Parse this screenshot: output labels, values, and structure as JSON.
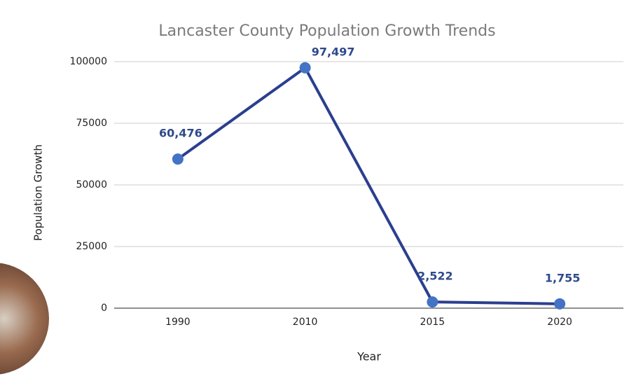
{
  "chart_data": {
    "type": "line",
    "title": "Lancaster County Population Growth Trends",
    "x_label": "Year",
    "y_label": "Population Growth",
    "categories": [
      "1990",
      "2010",
      "2015",
      "2020"
    ],
    "series": [
      {
        "name": "Population Growth",
        "color": "#2b3f8f",
        "marker_color": "#4472c4",
        "values": [
          60476,
          97497,
          2522,
          1755
        ],
        "value_labels": [
          "60,476",
          "97,497",
          "2,522",
          "1,755"
        ]
      }
    ],
    "ylim": [
      0,
      100000
    ],
    "yticks": [
      0,
      25000,
      50000,
      75000,
      100000
    ],
    "grid": true
  }
}
